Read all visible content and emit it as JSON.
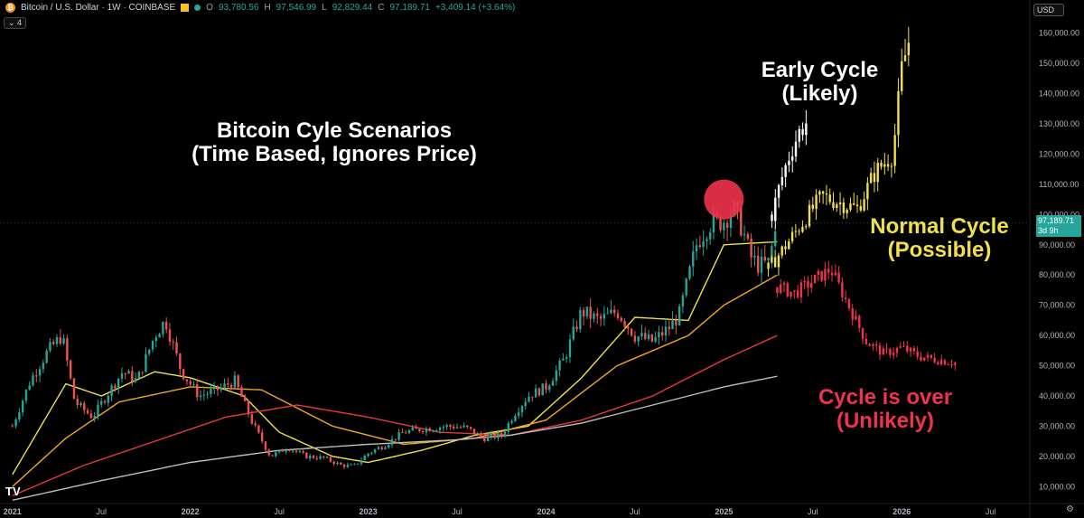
{
  "header": {
    "symbol": "Bitcoin / U.S. Dollar · 1W · COINBASE",
    "open": "93,780.56",
    "high": "97,546.99",
    "low": "92,829.44",
    "close": "97,189.71",
    "change": "+3,409.14 (+3.64%)",
    "indicator_count": "4",
    "currency": "USD"
  },
  "price_tag": {
    "price": "97,189.71",
    "countdown": "3d 9h"
  },
  "annotations": {
    "title": {
      "line1": "Bitcoin Cyle Scenarios",
      "line2": "(Time Based, Ignores Price)",
      "color": "#ffffff"
    },
    "early": {
      "line1": "Early Cycle",
      "line2": "(Likely)",
      "color": "#ffffff"
    },
    "normal": {
      "line1": "Normal Cycle",
      "line2": "(Possible)",
      "color": "#f0e14a"
    },
    "over": {
      "line1": "Cycle is over",
      "line2": "(Unlikely)",
      "color": "#f0334d"
    }
  },
  "chart_data": {
    "type": "line",
    "x_ticks": [
      "2021",
      "Jul",
      "2022",
      "Jul",
      "2023",
      "Jul",
      "2024",
      "Jul",
      "2025",
      "Jul",
      "2026",
      "Jul"
    ],
    "y_ticks": [
      "10,000.00",
      "20,000.00",
      "30,000.00",
      "40,000.00",
      "50,000.00",
      "60,000.00",
      "70,000.00",
      "80,000.00",
      "90,000.00",
      "100,000.00",
      "110,000.00",
      "120,000.00",
      "130,000.00",
      "140,000.00",
      "150,000.00",
      "160,000.00"
    ],
    "ylim": [
      5000,
      165000
    ],
    "xlim": [
      2020.93,
      2026.72
    ],
    "colors": {
      "up": "#26a69a",
      "down": "#ef5350",
      "early": "#ffffff",
      "normal": "#f0e14a",
      "over": "#f0334d"
    },
    "series": [
      {
        "style": "price",
        "color": "#26a69a",
        "x": [
          2021.0,
          2021.1,
          2021.2,
          2021.28,
          2021.35,
          2021.45,
          2021.55,
          2021.62,
          2021.7,
          2021.8,
          2021.86,
          2021.95,
          2022.05,
          2022.15,
          2022.25,
          2022.35,
          2022.45,
          2022.55,
          2022.65,
          2022.75,
          2022.85,
          2022.92,
          2023.0,
          2023.1,
          2023.2,
          2023.3,
          2023.45,
          2023.55,
          2023.65,
          2023.75,
          2023.82,
          2023.9,
          2024.0,
          2024.1,
          2024.2,
          2024.3,
          2024.4,
          2024.5,
          2024.6,
          2024.7,
          2024.75,
          2024.85,
          2024.92,
          2025.0,
          2025.05,
          2025.1,
          2025.15,
          2025.2,
          2025.25,
          2025.3
        ],
        "y": [
          30000,
          45000,
          55000,
          60000,
          38000,
          33000,
          42000,
          48000,
          45000,
          60000,
          65000,
          48000,
          40000,
          42000,
          45000,
          31000,
          20000,
          23000,
          20000,
          19500,
          17000,
          16800,
          21000,
          24000,
          28000,
          29000,
          30000,
          29500,
          26000,
          27000,
          34000,
          40000,
          43000,
          52000,
          68000,
          65000,
          68000,
          60000,
          58000,
          63000,
          67000,
          91000,
          97000,
          98000,
          102000,
          96000,
          86000,
          83000,
          84000,
          97000
        ]
      },
      {
        "style": "ma",
        "color": "#f0e14a",
        "x": [
          2021.0,
          2021.3,
          2021.5,
          2021.8,
          2022.0,
          2022.3,
          2022.5,
          2022.8,
          2023.0,
          2023.3,
          2023.6,
          2023.9,
          2024.2,
          2024.5,
          2024.8,
          2025.0,
          2025.3
        ],
        "y": [
          14000,
          44000,
          40000,
          48000,
          46000,
          40000,
          28000,
          20000,
          18000,
          22000,
          27000,
          30000,
          46000,
          66000,
          65000,
          90000,
          91000
        ]
      },
      {
        "style": "ma",
        "color": "#f5a623",
        "x": [
          2021.0,
          2021.3,
          2021.6,
          2022.0,
          2022.4,
          2022.8,
          2023.2,
          2023.6,
          2024.0,
          2024.4,
          2024.8,
          2025.0,
          2025.3
        ],
        "y": [
          10000,
          26000,
          38000,
          43000,
          42000,
          30000,
          24000,
          26000,
          32000,
          50000,
          60000,
          70000,
          80000
        ]
      },
      {
        "style": "ma",
        "color": "#e53935",
        "x": [
          2021.0,
          2021.4,
          2021.8,
          2022.2,
          2022.6,
          2023.0,
          2023.4,
          2023.8,
          2024.2,
          2024.6,
          2025.0,
          2025.3
        ],
        "y": [
          7000,
          17000,
          25000,
          33000,
          37000,
          33000,
          28000,
          27000,
          32000,
          40000,
          52000,
          60000
        ]
      },
      {
        "style": "ma",
        "color": "#bfbfbf",
        "x": [
          2021.0,
          2021.5,
          2022.0,
          2022.5,
          2023.0,
          2023.5,
          2023.8,
          2024.2,
          2024.6,
          2025.0,
          2025.3
        ],
        "y": [
          5500,
          12000,
          18000,
          22000,
          24000,
          25500,
          27000,
          31000,
          37000,
          43000,
          46500
        ]
      },
      {
        "name": "Early Cycle",
        "style": "projection",
        "color": "#ffffff",
        "x": [
          2025.27,
          2025.32,
          2025.37,
          2025.42,
          2025.47
        ],
        "y": [
          100000,
          111000,
          120000,
          127000,
          131000
        ]
      },
      {
        "name": "Normal Cycle",
        "style": "projection",
        "color": "#f0e14a",
        "x": [
          2025.25,
          2025.35,
          2025.45,
          2025.55,
          2025.65,
          2025.75,
          2025.85,
          2025.95,
          2026.0,
          2026.05
        ],
        "y": [
          82000,
          90000,
          98000,
          106000,
          104000,
          102000,
          114000,
          120000,
          148000,
          160000
        ]
      },
      {
        "name": "Cycle is over",
        "style": "projection",
        "color": "#f0334d",
        "x": [
          2025.3,
          2025.4,
          2025.5,
          2025.6,
          2025.7,
          2025.8,
          2025.9,
          2026.0,
          2026.1,
          2026.2,
          2026.3
        ],
        "y": [
          76000,
          74000,
          78000,
          82000,
          70000,
          58000,
          54000,
          56000,
          53000,
          52000,
          51000
        ]
      }
    ],
    "highlight_circle": {
      "x": 2025.0,
      "y": 105000,
      "color": "#f0334d"
    },
    "last_price": 97189.71
  }
}
